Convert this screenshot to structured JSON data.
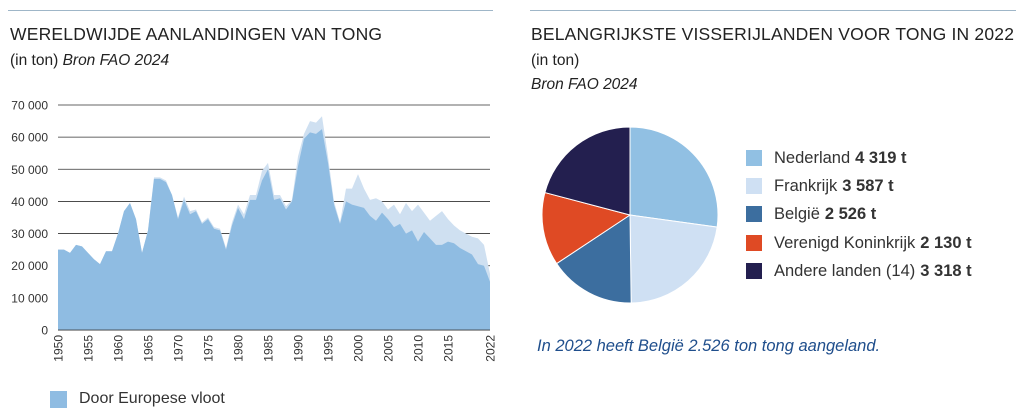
{
  "left": {
    "title": "WERELDWIJDE AANLANDINGEN VAN TONG",
    "subtitle_plain": "(in ton)",
    "subtitle_source": "Bron FAO 2024",
    "legend_label": "Door Europese vloot"
  },
  "right": {
    "title": "BELANGRIJKSTE VISSERIJLANDEN VOOR TONG IN 2022",
    "subtitle_plain": "(in ton)",
    "subtitle_source": "Bron FAO 2024",
    "note": "In 2022 heeft België 2.526 ton tong aangeland."
  },
  "colors": {
    "world_area": "#cfe0f1",
    "europe_area": "#8fbce2",
    "gridline": "#333333",
    "note_text": "#1f4e8c"
  },
  "chart_data": [
    {
      "type": "area",
      "title": "WERELDWIJDE AANLANDINGEN VAN TONG",
      "xlabel": "",
      "ylabel": "(in ton)",
      "ylim": [
        0,
        70000
      ],
      "yticks": [
        0,
        10000,
        20000,
        30000,
        40000,
        50000,
        60000,
        70000
      ],
      "ytick_labels": [
        "0",
        "10 000",
        "20 000",
        "30 000",
        "40 000",
        "50 000",
        "60 000",
        "70 000"
      ],
      "xticks": [
        1950,
        1955,
        1960,
        1965,
        1970,
        1975,
        1980,
        1985,
        1990,
        1995,
        2000,
        2005,
        2010,
        2015,
        2022
      ],
      "xtick_labels": [
        "1950",
        "1955",
        "1960",
        "1965",
        "1970",
        "1975",
        "1980",
        "1985",
        "1990",
        "1995",
        "2000",
        "2005",
        "2010",
        "2015",
        "2022"
      ],
      "grid": true,
      "legend_position": "bottom-left",
      "x": [
        1950,
        1951,
        1952,
        1953,
        1954,
        1955,
        1956,
        1957,
        1958,
        1959,
        1960,
        1961,
        1962,
        1963,
        1964,
        1965,
        1966,
        1967,
        1968,
        1969,
        1970,
        1971,
        1972,
        1973,
        1974,
        1975,
        1976,
        1977,
        1978,
        1979,
        1980,
        1981,
        1982,
        1983,
        1984,
        1985,
        1986,
        1987,
        1988,
        1989,
        1990,
        1991,
        1992,
        1993,
        1994,
        1995,
        1996,
        1997,
        1998,
        1999,
        2000,
        2001,
        2002,
        2003,
        2004,
        2005,
        2006,
        2007,
        2008,
        2009,
        2010,
        2011,
        2012,
        2013,
        2014,
        2015,
        2016,
        2017,
        2018,
        2019,
        2020,
        2021,
        2022
      ],
      "series": [
        {
          "name": "",
          "values": [
            25000,
            25000,
            24000,
            26500,
            26000,
            24000,
            22000,
            20500,
            24500,
            24500,
            30000,
            37000,
            39500,
            34500,
            24000,
            31000,
            47500,
            47500,
            46500,
            42000,
            35000,
            41500,
            37000,
            37500,
            33500,
            35000,
            32000,
            31500,
            25500,
            33500,
            39000,
            36000,
            42000,
            42000,
            49500,
            52000,
            42000,
            42000,
            38500,
            40500,
            54000,
            61000,
            65000,
            64500,
            66500,
            54000,
            40000,
            33500,
            44000,
            44000,
            48500,
            44000,
            40500,
            41000,
            40000,
            37500,
            39000,
            36000,
            39500,
            37000,
            39000,
            36500,
            34000,
            35500,
            37000,
            34500,
            32500,
            31000,
            30000,
            29000,
            28500,
            26500,
            17500
          ]
        },
        {
          "name": "Door Europese vloot",
          "values": [
            25000,
            25000,
            24000,
            26500,
            26000,
            24000,
            22000,
            20500,
            24500,
            24500,
            30000,
            37000,
            39500,
            34500,
            24000,
            31000,
            47000,
            47000,
            46000,
            42000,
            34500,
            40500,
            36000,
            37000,
            33000,
            34500,
            31500,
            31000,
            25000,
            32500,
            38000,
            34500,
            40500,
            40500,
            46500,
            50000,
            40500,
            41000,
            37500,
            40000,
            51000,
            59500,
            61500,
            61000,
            62500,
            52000,
            39000,
            33000,
            40000,
            39000,
            38500,
            38000,
            35500,
            34000,
            36500,
            34500,
            32000,
            33000,
            30000,
            31000,
            27500,
            30500,
            28500,
            26500,
            26500,
            27500,
            27000,
            25500,
            24500,
            23500,
            20500,
            20000,
            15000
          ]
        }
      ]
    },
    {
      "type": "pie",
      "title": "BELANGRIJKSTE VISSERIJLANDEN VOOR TONG IN 2022",
      "legend_position": "right",
      "categories": [
        "Nederland",
        "Frankrijk",
        "België",
        "Verenigd Koninkrijk",
        "Andere landen (14)"
      ],
      "values": [
        4319,
        3587,
        2526,
        2130,
        3318
      ],
      "value_labels": [
        "4 319 t",
        "3 587 t",
        "2 526 t",
        "2 130 t",
        "3 318 t"
      ],
      "colors": [
        "#91c0e3",
        "#cfe0f3",
        "#3c6e9f",
        "#df4a24",
        "#231f4f"
      ]
    }
  ]
}
